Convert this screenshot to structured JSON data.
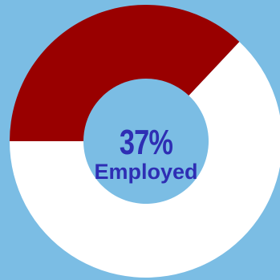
{
  "chart_data": {
    "type": "pie",
    "style": "donut",
    "slices": [
      {
        "value": 37,
        "color": "#990000"
      },
      {
        "value": 63,
        "color": "#ffffff"
      }
    ],
    "center_value": "37%",
    "center_label": "Employed",
    "background_color": "#7bbde4",
    "label_color": "#2e2eb4"
  }
}
